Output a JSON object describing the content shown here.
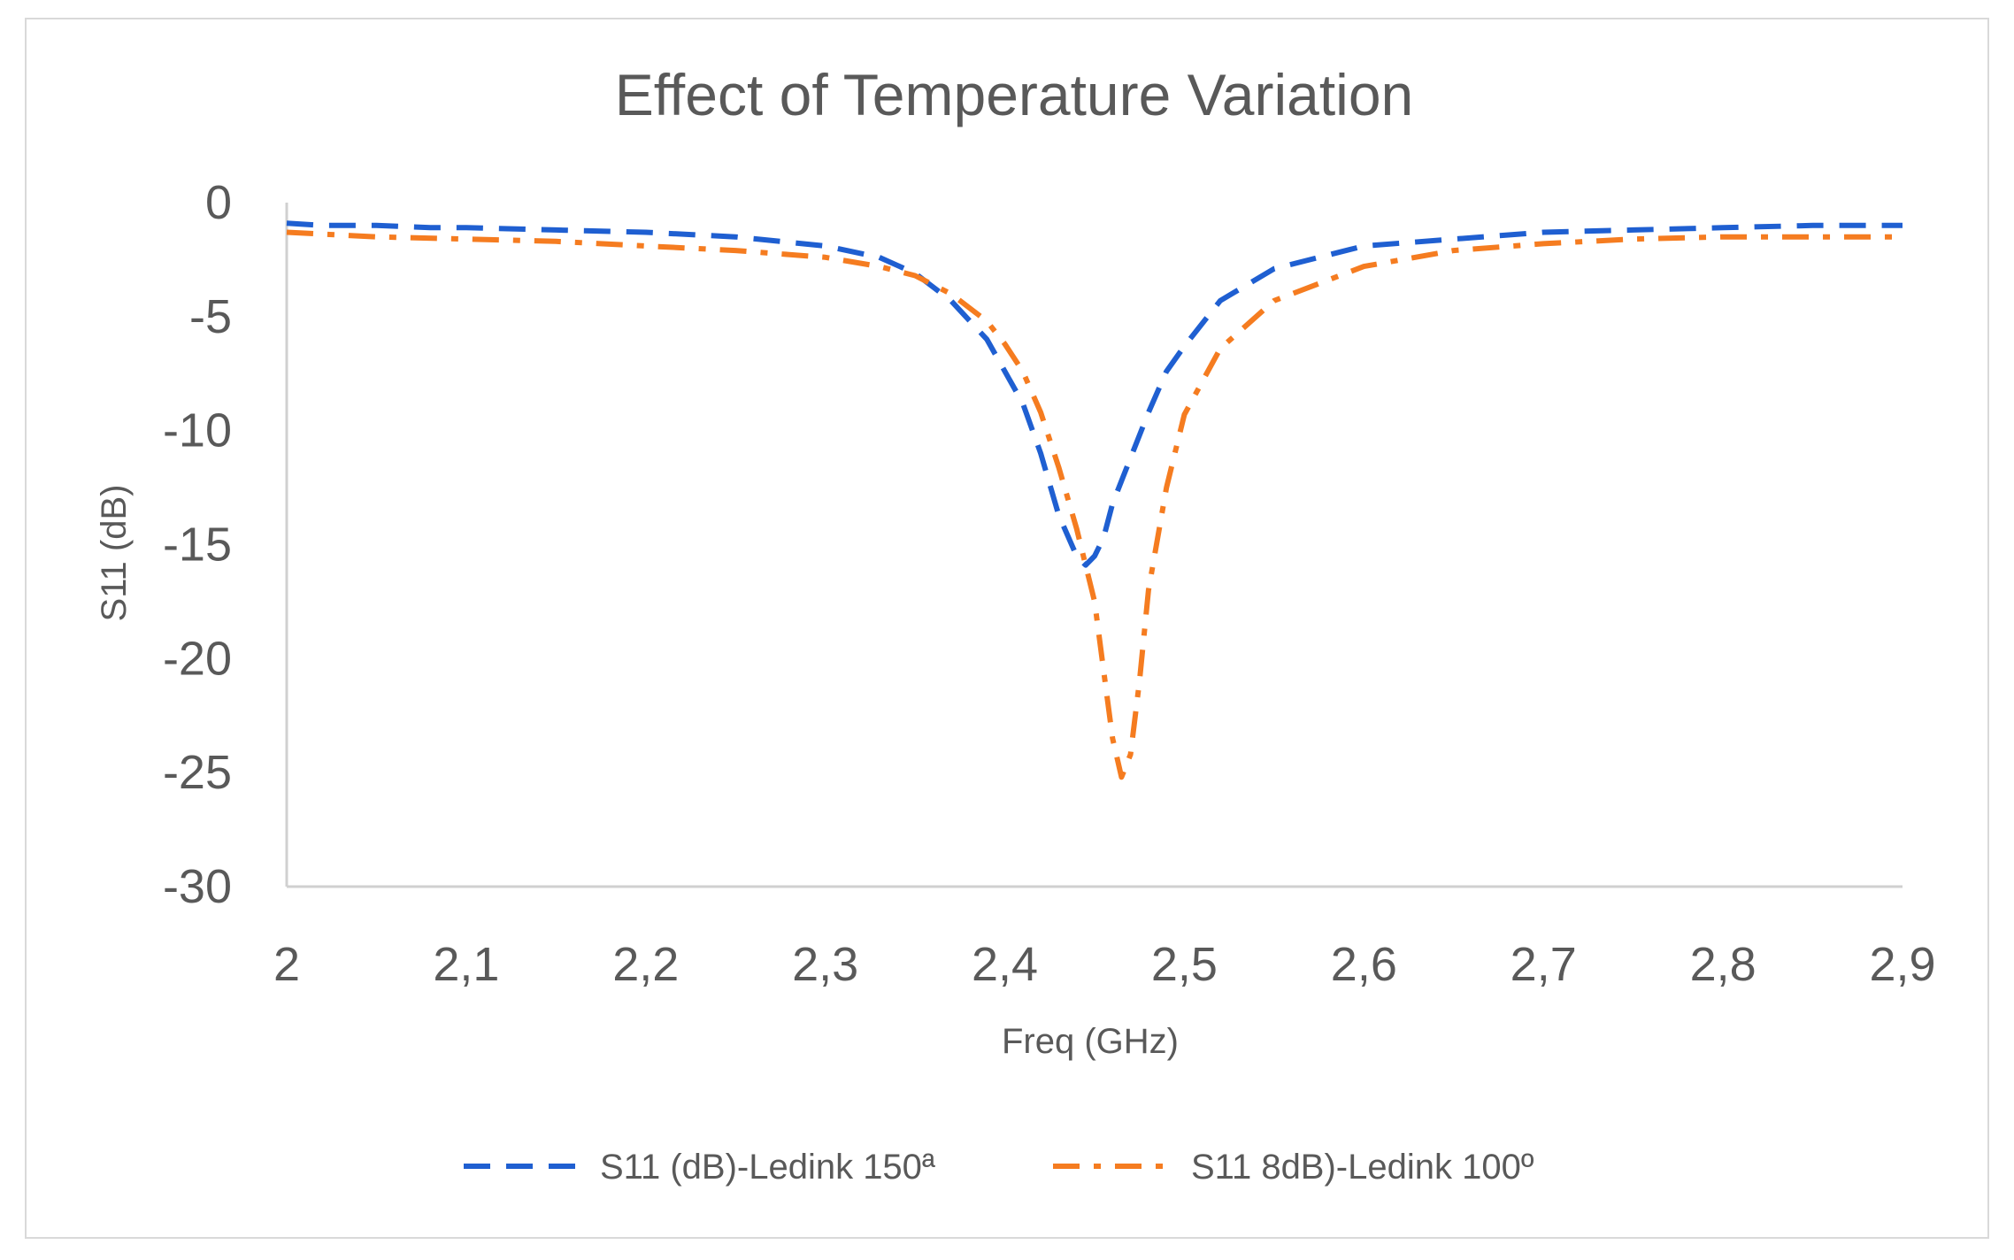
{
  "chart_data": {
    "type": "line",
    "title": "Effect of Temperature Variation",
    "xlabel": "Freq (GHz)",
    "ylabel": "S11 (dB)",
    "xlim": [
      2,
      2.9
    ],
    "ylim": [
      -30,
      0
    ],
    "x_tick_labels": [
      "2",
      "2,1",
      "2,2",
      "2,3",
      "2,4",
      "2,5",
      "2,6",
      "2,7",
      "2,8",
      "2,9"
    ],
    "x_ticks": [
      2,
      2.1,
      2.2,
      2.3,
      2.4,
      2.5,
      2.6,
      2.7,
      2.8,
      2.9
    ],
    "y_tick_labels": [
      "0",
      "-5",
      "-10",
      "-15",
      "-20",
      "-25",
      "-30"
    ],
    "y_ticks": [
      0,
      -5,
      -10,
      -15,
      -20,
      -25,
      -30
    ],
    "grid": false,
    "legend_position": "bottom",
    "series": [
      {
        "name": "S11 (dB)-Ledink 150ª",
        "color": "#1f5fd1",
        "style": "dashed",
        "x": [
          2.0,
          2.02,
          2.05,
          2.08,
          2.1,
          2.15,
          2.2,
          2.25,
          2.3,
          2.33,
          2.35,
          2.37,
          2.39,
          2.41,
          2.42,
          2.43,
          2.44,
          2.445,
          2.45,
          2.455,
          2.46,
          2.47,
          2.48,
          2.49,
          2.5,
          2.52,
          2.55,
          2.6,
          2.65,
          2.7,
          2.75,
          2.8,
          2.85,
          2.9
        ],
        "y": [
          -0.9,
          -1.0,
          -1.0,
          -1.1,
          -1.1,
          -1.2,
          -1.3,
          -1.5,
          -1.9,
          -2.4,
          -3.1,
          -4.3,
          -6.0,
          -8.8,
          -11.0,
          -13.7,
          -15.5,
          -15.9,
          -15.5,
          -14.7,
          -13.2,
          -11.2,
          -9.2,
          -7.4,
          -6.3,
          -4.3,
          -2.9,
          -1.9,
          -1.6,
          -1.3,
          -1.2,
          -1.1,
          -1.0,
          -1.0
        ]
      },
      {
        "name": "S11 8dB)-Ledink 100º",
        "color": "#f57c20",
        "style": "dashdot",
        "x": [
          2.0,
          2.05,
          2.1,
          2.15,
          2.2,
          2.25,
          2.3,
          2.33,
          2.35,
          2.37,
          2.39,
          2.4,
          2.41,
          2.42,
          2.43,
          2.44,
          2.45,
          2.455,
          2.46,
          2.465,
          2.47,
          2.475,
          2.48,
          2.49,
          2.5,
          2.52,
          2.55,
          2.6,
          2.65,
          2.7,
          2.75,
          2.8,
          2.85,
          2.9
        ],
        "y": [
          -1.3,
          -1.5,
          -1.6,
          -1.7,
          -1.9,
          -2.1,
          -2.4,
          -2.8,
          -3.2,
          -4.0,
          -5.2,
          -6.2,
          -7.4,
          -9.2,
          -11.6,
          -14.3,
          -17.5,
          -20.5,
          -23.5,
          -25.2,
          -24.2,
          -21.0,
          -17.0,
          -12.5,
          -9.3,
          -6.4,
          -4.3,
          -2.8,
          -2.1,
          -1.8,
          -1.6,
          -1.5,
          -1.5,
          -1.5
        ]
      }
    ]
  }
}
